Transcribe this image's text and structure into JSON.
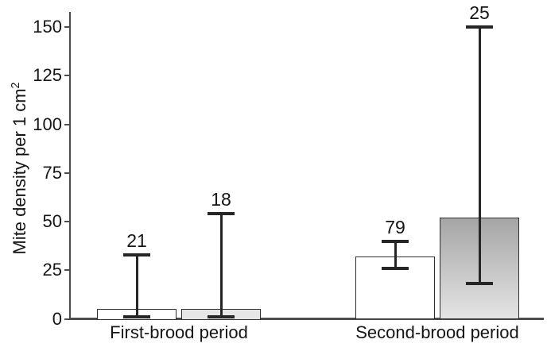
{
  "chart_data": {
    "type": "bar",
    "title": "",
    "ylabel": "Mite density per 1 cm",
    "ylabel_superscript": "2",
    "xlabel": "",
    "ylim": [
      0,
      150
    ],
    "yticks": [
      "0",
      "25",
      "50",
      "75",
      "100",
      "125",
      "150"
    ],
    "ytick_values": [
      0,
      25,
      50,
      75,
      100,
      125,
      150
    ],
    "grid": false,
    "legend": "none",
    "categories": [
      "First-brood period",
      "Second-brood period"
    ],
    "series": [
      {
        "name": "white-bars",
        "values": [
          5,
          32
        ],
        "err_low": [
          1,
          26
        ],
        "err_high": [
          33,
          40
        ],
        "point_labels": [
          "21",
          "79"
        ],
        "fills": [
          {
            "type": "solid",
            "color": "#ffffff"
          },
          {
            "type": "solid",
            "color": "#ffffff"
          }
        ]
      },
      {
        "name": "gray-bars",
        "values": [
          5,
          52
        ],
        "err_low": [
          1,
          18
        ],
        "err_high": [
          54,
          150
        ],
        "point_labels": [
          "18",
          "25"
        ],
        "fills": [
          {
            "type": "solid",
            "color": "#e6e6e6"
          },
          {
            "type": "gradient",
            "from": "#a5a5a5",
            "to": "#e4e4e4"
          }
        ]
      }
    ],
    "colors": {
      "bar_border": "#2e2e2e",
      "error_bar": "#262626",
      "axis": "#4c4c4c",
      "text": "#151515",
      "background": "#ffffff"
    }
  }
}
